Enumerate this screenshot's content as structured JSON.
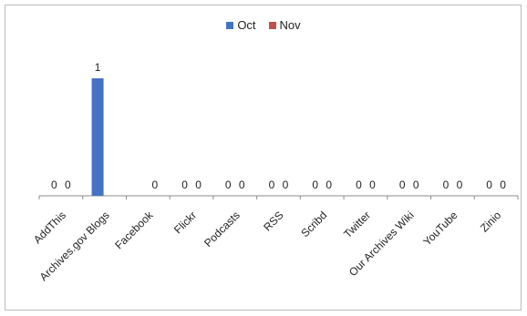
{
  "chart_data": {
    "type": "bar",
    "categories": [
      "AddThis",
      "Archives.gov Blogs",
      "Facebook",
      "Flickr",
      "Podcasts",
      "RSS",
      "Scribd",
      "Twitter",
      "Our Archives Wiki",
      "YouTube",
      "Zinio"
    ],
    "series": [
      {
        "name": "Oct",
        "color": "#4472c4",
        "values": [
          0,
          1,
          0,
          0,
          0,
          0,
          0,
          0,
          0,
          0,
          0
        ]
      },
      {
        "name": "Nov",
        "color": "#c0504d",
        "values": [
          0,
          0,
          0,
          0,
          0,
          0,
          0,
          0,
          0,
          0,
          0
        ]
      }
    ],
    "data_labels": [
      [
        "0",
        "1",
        "",
        "0",
        "0",
        "0",
        "0",
        "0",
        "0",
        "0",
        "0"
      ],
      [
        "0",
        "",
        "0",
        "0",
        "0",
        "0",
        "0",
        "0",
        "0",
        "0",
        "0"
      ]
    ],
    "ylim": [
      0,
      1
    ],
    "legend_position": "top-center",
    "grid": false
  }
}
